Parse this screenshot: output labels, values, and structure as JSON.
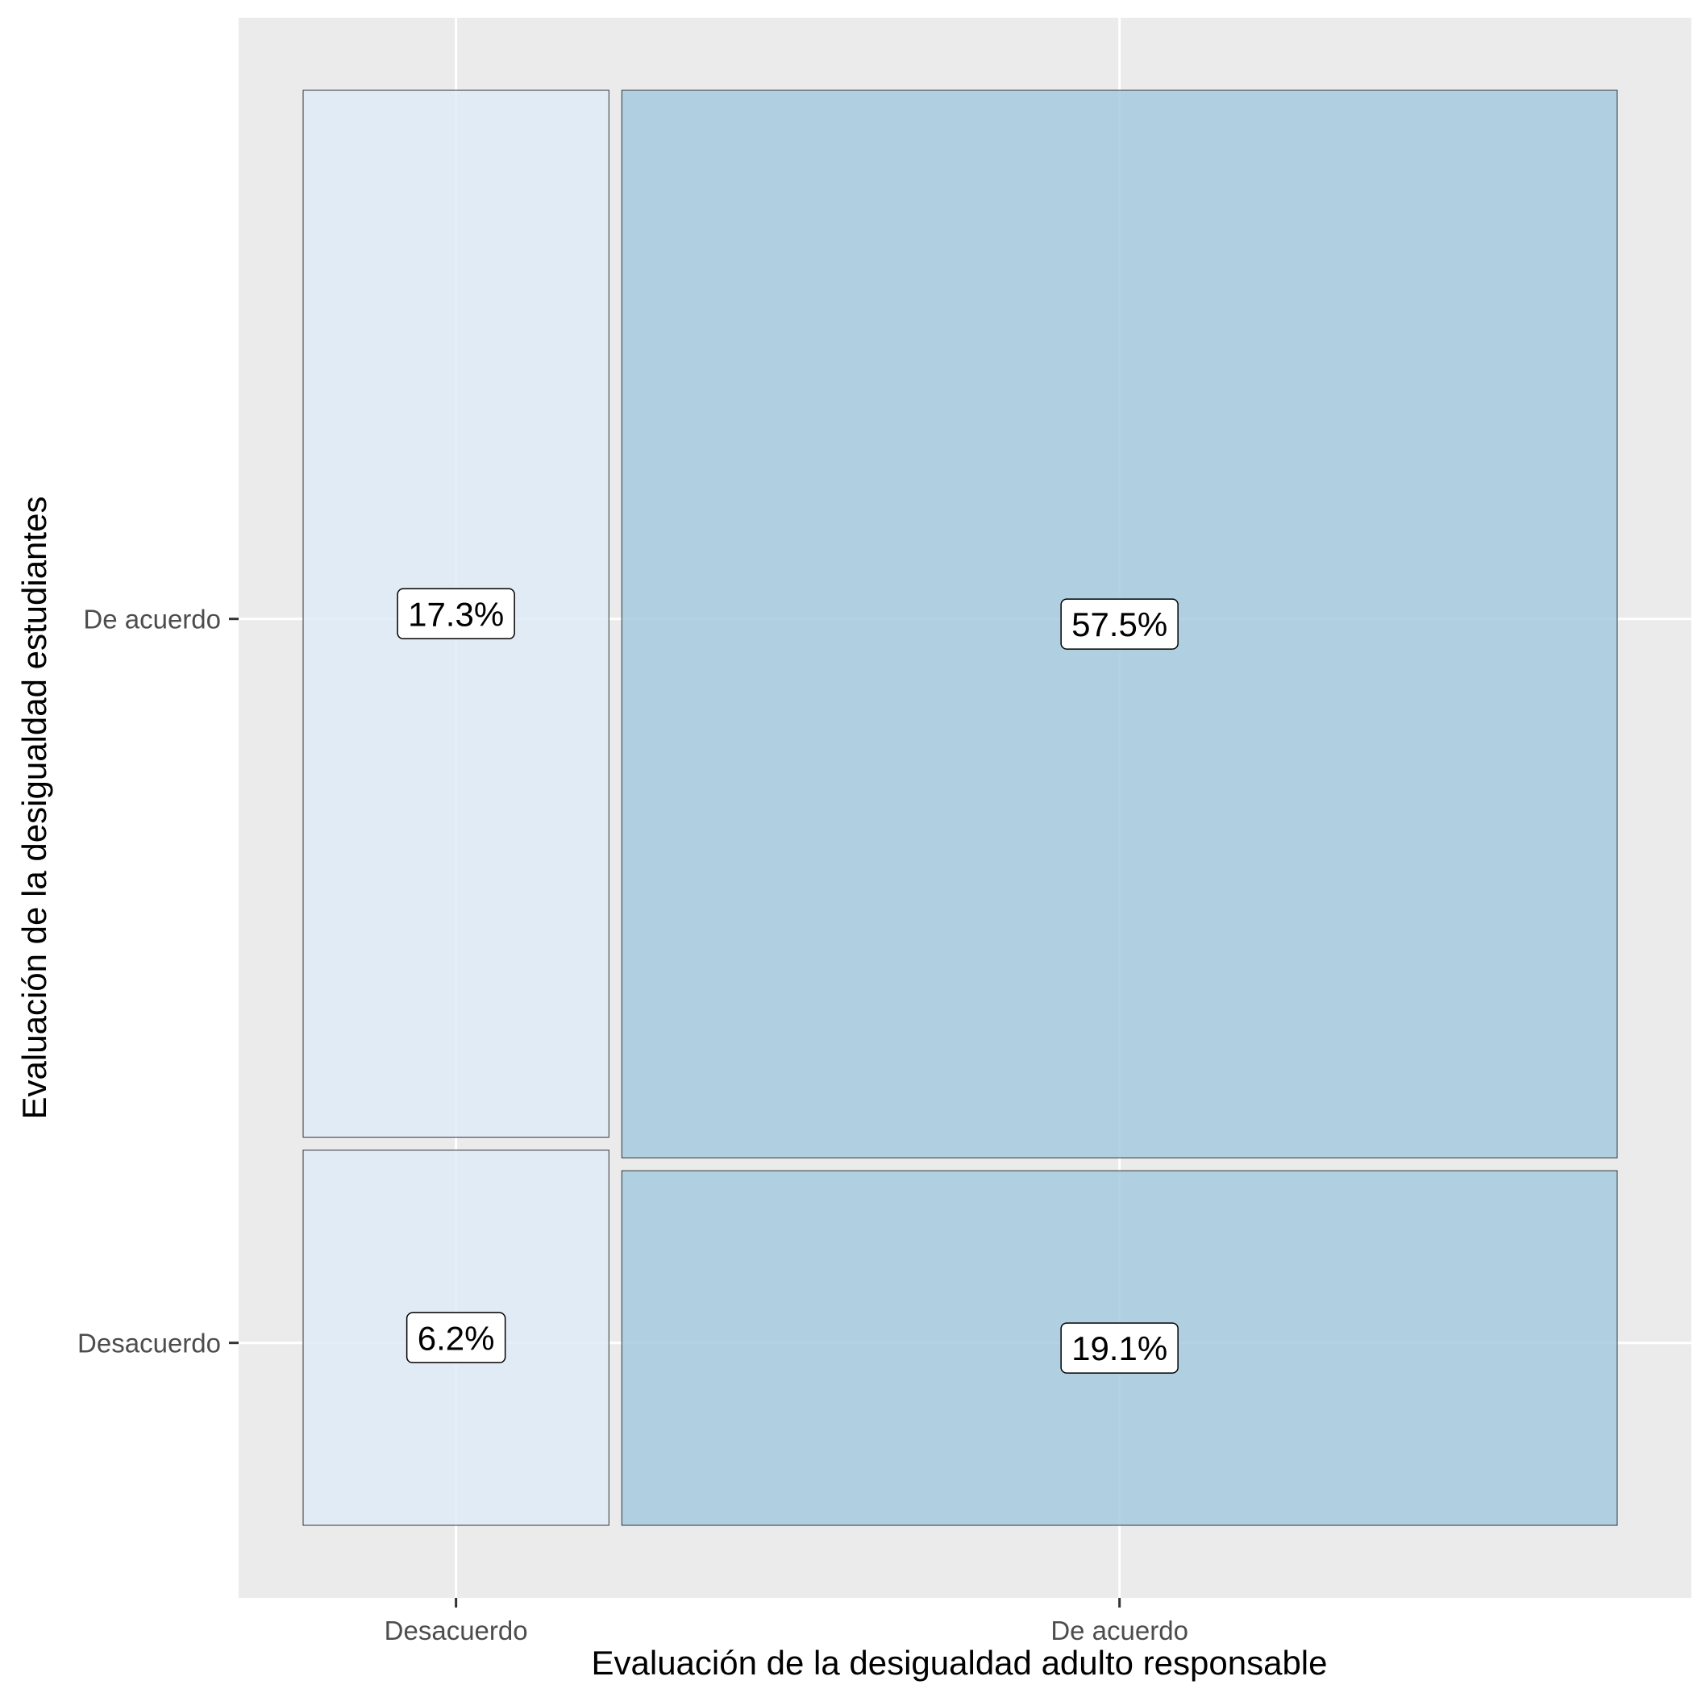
{
  "chart_data": {
    "type": "mosaic",
    "title": "",
    "xlabel": "Evaluación de la desigualdad adulto responsable",
    "ylabel": "Evaluación de la desigualdad estudiantes",
    "x_categories": [
      "Desacuerdo",
      "De acuerdo"
    ],
    "y_categories": [
      "Desacuerdo",
      "De acuerdo"
    ],
    "x_fractions": [
      0.235,
      0.765
    ],
    "grid": true,
    "legend": "none",
    "colors": {
      "panel": "#ebebeb",
      "grid": "#ffffff",
      "Desacuerdo": "#deebf7",
      "De acuerdo": "#a6cbe0"
    },
    "cells": [
      {
        "x": "Desacuerdo",
        "y": "De acuerdo",
        "value": 17.3,
        "label": "17.3%"
      },
      {
        "x": "De acuerdo",
        "y": "De acuerdo",
        "value": 57.5,
        "label": "57.5%"
      },
      {
        "x": "Desacuerdo",
        "y": "Desacuerdo",
        "value": 6.2,
        "label": "6.2%"
      },
      {
        "x": "De acuerdo",
        "y": "Desacuerdo",
        "value": 19.1,
        "label": "19.1%"
      }
    ]
  }
}
